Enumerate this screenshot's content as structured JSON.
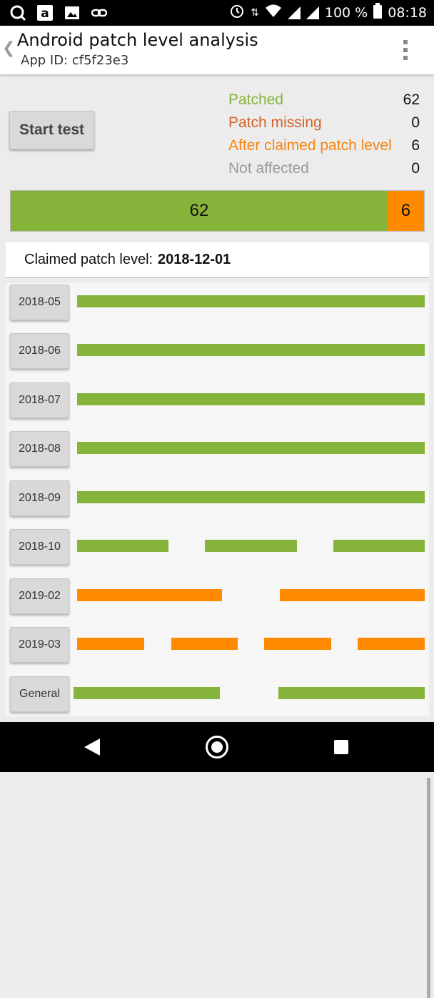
{
  "status_bar": {
    "left_icons": [
      "q-app-icon",
      "amazon-icon",
      "image-icon",
      "link-icon"
    ],
    "battery": "100 %",
    "time": "08:18"
  },
  "app_bar": {
    "title": "Android patch level analysis",
    "subtitle": "App ID: cf5f23e3"
  },
  "start_button": {
    "label": "Start test"
  },
  "legend": [
    {
      "label": "Patched",
      "value": "62",
      "color": "#86b43a"
    },
    {
      "label": "Patch missing",
      "value": "0",
      "color": "#d4622a"
    },
    {
      "label": "After claimed patch level",
      "value": "6",
      "color": "#f5850f"
    },
    {
      "label": "Not affected",
      "value": "0",
      "color": "#9a9a9a"
    }
  ],
  "summary_bar": {
    "patched": {
      "value": "62",
      "count": 62,
      "color": "#86b43a"
    },
    "after_claimed": {
      "value": "6",
      "count": 6,
      "color": "#ff8a00"
    }
  },
  "claimed_patch": {
    "label": "Claimed patch level:",
    "value": "2018-12-01"
  },
  "rows": [
    {
      "label": "2018-05",
      "color": "#86b43a",
      "segments": 1
    },
    {
      "label": "2018-06",
      "color": "#86b43a",
      "segments": 1
    },
    {
      "label": "2018-07",
      "color": "#86b43a",
      "segments": 1
    },
    {
      "label": "2018-08",
      "color": "#86b43a",
      "segments": 1
    },
    {
      "label": "2018-09",
      "color": "#86b43a",
      "segments": 1
    },
    {
      "label": "2018-10",
      "color": "#86b43a",
      "segments": 3
    },
    {
      "label": "2019-02",
      "color": "#ff8a00",
      "segments": 2
    },
    {
      "label": "2019-03",
      "color": "#ff8a00",
      "segments": 4
    },
    {
      "label": "General",
      "color": "#86b43a",
      "segments": 2
    }
  ]
}
